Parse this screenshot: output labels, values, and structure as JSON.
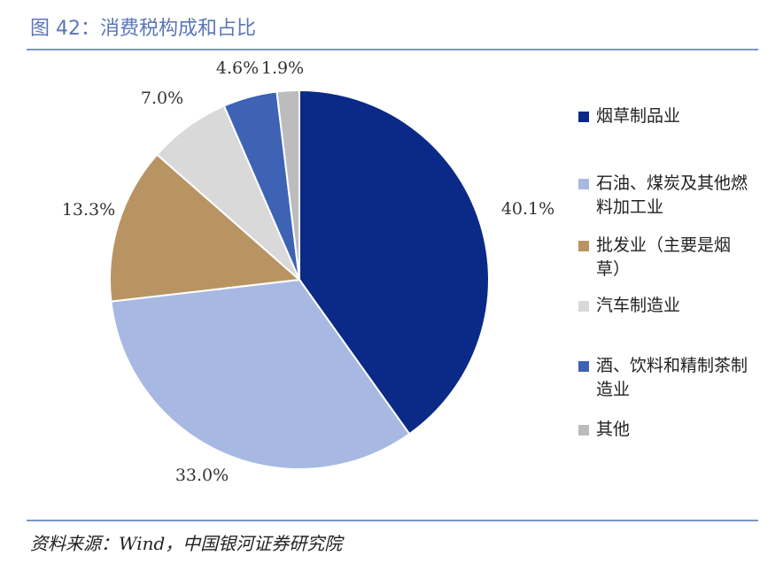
{
  "title": "图 42：消费税构成和占比",
  "source": "资料来源：Wind，中国银河证券研究院",
  "chart_data": {
    "type": "pie",
    "title": "",
    "start_angle_deg": 0,
    "direction": "clockwise",
    "legend_position": "right",
    "slices": [
      {
        "name": "烟草制品业",
        "value": 40.1,
        "label": "40.1%",
        "color": "#0b2a87"
      },
      {
        "name": "石油、煤炭及其他燃料加工业",
        "value": 33.0,
        "label": "33.0%",
        "color": "#a7b9e2"
      },
      {
        "name": "批发业（主要是烟草）",
        "value": 13.3,
        "label": "13.3%",
        "color": "#b99463"
      },
      {
        "name": "汽车制造业",
        "value": 7.0,
        "label": "7.0%",
        "color": "#d9d9d9"
      },
      {
        "name": "酒、饮料和精制茶制造业",
        "value": 4.6,
        "label": "4.6%",
        "color": "#3e63b4"
      },
      {
        "name": "其他",
        "value": 1.9,
        "label": "1.9%",
        "color": "#bcbcbc"
      }
    ]
  }
}
